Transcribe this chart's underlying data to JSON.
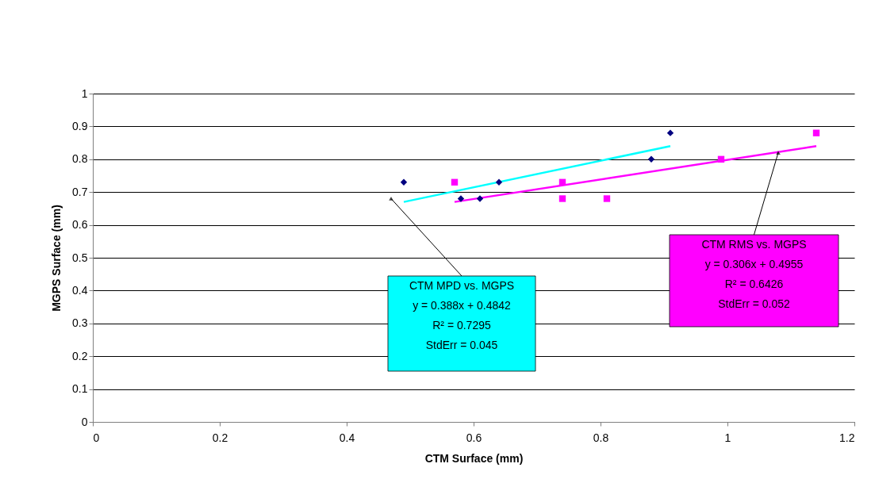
{
  "chart_data": {
    "type": "scatter",
    "xlabel": "CTM Surface (mm)",
    "ylabel": "MGPS Surface (mm)",
    "xlim": [
      0,
      1.2
    ],
    "xticks": [
      0,
      0.2,
      0.4,
      0.6,
      0.8,
      1,
      1.2
    ],
    "ylim": [
      0,
      1
    ],
    "yticks": [
      0,
      0.1,
      0.2,
      0.3,
      0.4,
      0.5,
      0.6,
      0.7,
      0.8,
      0.9,
      1
    ],
    "grid": "y",
    "series": [
      {
        "marker": "diamond",
        "color": "#000080",
        "x": [
          0.49,
          0.58,
          0.61,
          0.64,
          0.88,
          0.91
        ],
        "values": [
          0.73,
          0.68,
          0.68,
          0.73,
          0.8,
          0.88
        ]
      },
      {
        "marker": "square",
        "color": "#ff00ff",
        "x": [
          0.57,
          0.74,
          0.74,
          0.81,
          0.99,
          1.14
        ],
        "values": [
          0.73,
          0.73,
          0.68,
          0.68,
          0.8,
          0.88
        ]
      },
      {
        "type": "line",
        "color": "#00ffff",
        "x": [
          0.49,
          0.91
        ],
        "values": [
          0.67,
          0.84
        ]
      },
      {
        "type": "line",
        "color": "#ff00ff",
        "x": [
          0.57,
          1.14
        ],
        "values": [
          0.67,
          0.84
        ]
      }
    ],
    "annotations": [
      {
        "text": "CTM MPD vs. MGPS\ny = 0.388x + 0.4842\nR² = 0.7295\nStdErr = 0.045",
        "x": 0.47,
        "y": 0.68
      },
      {
        "text": "CTM RMS vs. MGPS\ny = 0.306x + 0.4955\nR² = 0.6426\nStdErr = 0.052",
        "x": 1.08,
        "y": 0.82
      }
    ]
  }
}
